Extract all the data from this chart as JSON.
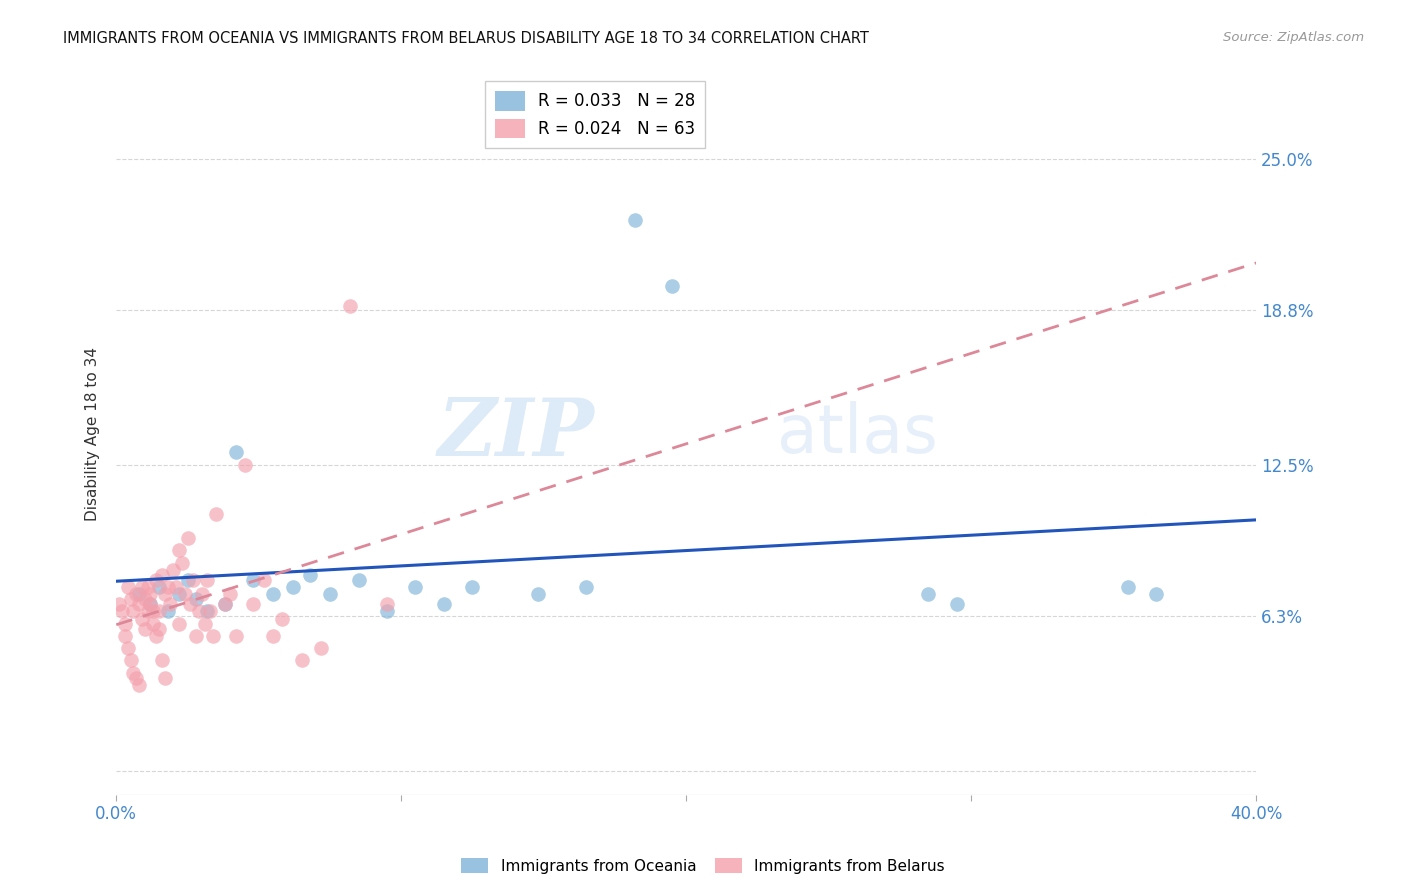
{
  "title": "IMMIGRANTS FROM OCEANIA VS IMMIGRANTS FROM BELARUS DISABILITY AGE 18 TO 34 CORRELATION CHART",
  "source": "Source: ZipAtlas.com",
  "ylabel": "Disability Age 18 to 34",
  "xlim": [
    0.0,
    0.4
  ],
  "ylim": [
    -0.01,
    0.285
  ],
  "xticks": [
    0.0,
    0.1,
    0.2,
    0.3,
    0.4
  ],
  "xticklabels_show": [
    "0.0%",
    "",
    "",
    "",
    "40.0%"
  ],
  "right_yticks": [
    0.0,
    0.063,
    0.125,
    0.188,
    0.25
  ],
  "right_yticklabels": [
    "",
    "6.3%",
    "12.5%",
    "18.8%",
    "25.0%"
  ],
  "watermark_zip": "ZIP",
  "watermark_atlas": "atlas",
  "legend_blue_r": "R = 0.033",
  "legend_blue_n": "N = 28",
  "legend_pink_r": "R = 0.024",
  "legend_pink_n": "N = 63",
  "color_blue": "#7EB3D8",
  "color_pink": "#F4A0AC",
  "color_blue_line": "#2255BB",
  "color_pink_line": "#DD8899",
  "color_axis_blue": "#4488CC",
  "oceania_x": [
    0.008,
    0.012,
    0.015,
    0.018,
    0.022,
    0.025,
    0.028,
    0.032,
    0.038,
    0.042,
    0.048,
    0.055,
    0.062,
    0.068,
    0.075,
    0.085,
    0.095,
    0.105,
    0.115,
    0.125,
    0.148,
    0.165,
    0.182,
    0.195,
    0.285,
    0.295,
    0.355,
    0.365
  ],
  "oceania_y": [
    0.072,
    0.068,
    0.075,
    0.065,
    0.072,
    0.078,
    0.07,
    0.065,
    0.068,
    0.13,
    0.078,
    0.072,
    0.075,
    0.08,
    0.072,
    0.078,
    0.065,
    0.075,
    0.068,
    0.075,
    0.072,
    0.075,
    0.225,
    0.198,
    0.072,
    0.068,
    0.075,
    0.072
  ],
  "belarus_x": [
    0.001,
    0.002,
    0.003,
    0.003,
    0.004,
    0.004,
    0.005,
    0.005,
    0.006,
    0.006,
    0.007,
    0.007,
    0.008,
    0.008,
    0.009,
    0.009,
    0.01,
    0.01,
    0.011,
    0.011,
    0.012,
    0.012,
    0.013,
    0.013,
    0.014,
    0.014,
    0.015,
    0.015,
    0.016,
    0.016,
    0.017,
    0.017,
    0.018,
    0.019,
    0.02,
    0.021,
    0.022,
    0.022,
    0.023,
    0.024,
    0.025,
    0.026,
    0.027,
    0.028,
    0.029,
    0.03,
    0.031,
    0.032,
    0.033,
    0.034,
    0.035,
    0.038,
    0.04,
    0.042,
    0.045,
    0.048,
    0.052,
    0.055,
    0.058,
    0.065,
    0.072,
    0.082,
    0.095
  ],
  "belarus_y": [
    0.068,
    0.065,
    0.06,
    0.055,
    0.075,
    0.05,
    0.07,
    0.045,
    0.065,
    0.04,
    0.072,
    0.038,
    0.068,
    0.035,
    0.075,
    0.062,
    0.07,
    0.058,
    0.075,
    0.065,
    0.068,
    0.072,
    0.065,
    0.06,
    0.078,
    0.055,
    0.065,
    0.058,
    0.08,
    0.045,
    0.072,
    0.038,
    0.075,
    0.068,
    0.082,
    0.075,
    0.09,
    0.06,
    0.085,
    0.072,
    0.095,
    0.068,
    0.078,
    0.055,
    0.065,
    0.072,
    0.06,
    0.078,
    0.065,
    0.055,
    0.105,
    0.068,
    0.072,
    0.055,
    0.125,
    0.068,
    0.078,
    0.055,
    0.062,
    0.045,
    0.05,
    0.19,
    0.068
  ]
}
